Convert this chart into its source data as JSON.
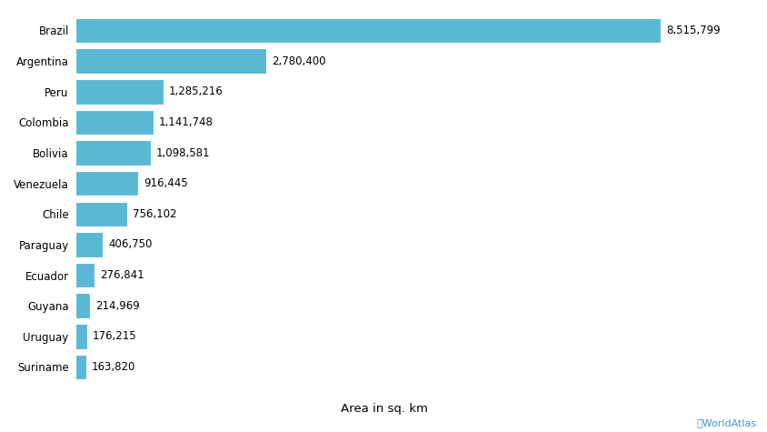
{
  "countries": [
    "Brazil",
    "Argentina",
    "Peru",
    "Colombia",
    "Bolivia",
    "Venezuela",
    "Chile",
    "Paraguay",
    "Ecuador",
    "Guyana",
    "Uruguay",
    "Suriname"
  ],
  "values": [
    8515799,
    2780400,
    1285216,
    1141748,
    1098581,
    916445,
    756102,
    406750,
    276841,
    214969,
    176215,
    163820
  ],
  "labels": [
    "8,515,799",
    "2,780,400",
    "1,285,216",
    "1,141,748",
    "1,098,581",
    "916,445",
    "756,102",
    "406,750",
    "276,841",
    "214,969",
    "176,215",
    "163,820"
  ],
  "bar_color": "#5bb8d4",
  "background_color": "#ffffff",
  "xlabel": "Area in sq. km",
  "watermark": "ⓘWorldAtlas",
  "watermark_color": "#4a90c4",
  "label_fontsize": 8.5,
  "tick_fontsize": 8.5,
  "xlabel_fontsize": 9.5,
  "bar_height": 0.82,
  "xlim_factor": 1.16
}
